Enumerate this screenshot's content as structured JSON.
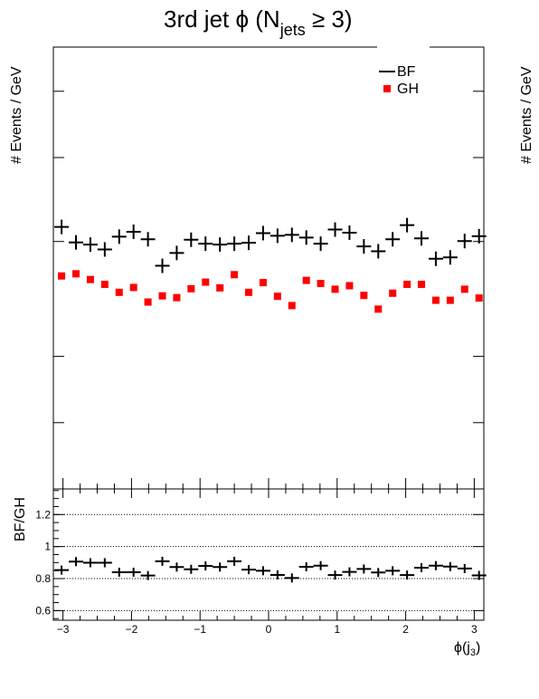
{
  "chart_data": [
    {
      "type": "scatter",
      "title": "3rd jet ϕ (N",
      "title_sub": "jets",
      "title_end": " ≥ 3)",
      "ylabel": "# Events / GeV",
      "ylabel_right": "# Events / GeV",
      "y_tick_labels": [],
      "legend": {
        "placement": "top-right",
        "entries": [
          "BF",
          "GH"
        ]
      },
      "x": [
        -3.02,
        -2.81,
        -2.6,
        -2.39,
        -2.18,
        -1.97,
        -1.76,
        -1.55,
        -1.34,
        -1.13,
        -0.92,
        -0.71,
        -0.5,
        -0.29,
        -0.08,
        0.13,
        0.34,
        0.55,
        0.76,
        0.97,
        1.18,
        1.39,
        1.6,
        1.81,
        2.02,
        2.23,
        2.44,
        2.65,
        2.86,
        3.07
      ],
      "series": [
        {
          "name": "BF",
          "color": "#000000",
          "marker": "cross",
          "values": [
            0.593,
            0.558,
            0.553,
            0.542,
            0.571,
            0.582,
            0.565,
            0.505,
            0.534,
            0.564,
            0.555,
            0.553,
            0.555,
            0.557,
            0.579,
            0.573,
            0.575,
            0.569,
            0.555,
            0.587,
            0.58,
            0.549,
            0.538,
            0.565,
            0.597,
            0.567,
            0.521,
            0.524,
            0.561,
            0.572
          ]
        },
        {
          "name": "GH",
          "color": "#ff0000",
          "marker": "square",
          "values": [
            0.482,
            0.487,
            0.474,
            0.463,
            0.445,
            0.456,
            0.423,
            0.437,
            0.433,
            0.453,
            0.468,
            0.455,
            0.485,
            0.445,
            0.467,
            0.436,
            0.415,
            0.472,
            0.465,
            0.452,
            0.46,
            0.438,
            0.407,
            0.443,
            0.463,
            0.463,
            0.427,
            0.427,
            0.452,
            0.432
          ]
        }
      ],
      "grid": false
    },
    {
      "type": "scatter",
      "ylabel": "BF/GH",
      "xlabel": "ϕ(j",
      "xlabel_sub": "3",
      "xlabel_end": ")",
      "xlim": [
        -3.14,
        3.14
      ],
      "ylim": [
        0.54,
        1.36
      ],
      "x_ticks": [
        -3,
        -2,
        -1,
        0,
        1,
        2,
        3
      ],
      "x_tick_labels": [
        "−3",
        "−2",
        "−1",
        "0",
        "1",
        "2",
        "3"
      ],
      "y_ticks": [
        0.6,
        0.8,
        1.0,
        1.2
      ],
      "y_tick_labels": [
        "0.6",
        "0.8",
        "1",
        "1.2"
      ],
      "grid": true,
      "x": [
        -3.02,
        -2.81,
        -2.6,
        -2.39,
        -2.18,
        -1.97,
        -1.76,
        -1.55,
        -1.34,
        -1.13,
        -0.92,
        -0.71,
        -0.5,
        -0.29,
        -0.08,
        0.13,
        0.34,
        0.55,
        0.76,
        0.97,
        1.18,
        1.39,
        1.6,
        1.81,
        2.02,
        2.23,
        2.44,
        2.65,
        2.86,
        3.07
      ],
      "series": [
        {
          "name": "BF/GH",
          "color": "#000000",
          "marker": "cross",
          "values": [
            0.853,
            0.906,
            0.899,
            0.899,
            0.84,
            0.84,
            0.819,
            0.908,
            0.872,
            0.858,
            0.879,
            0.872,
            0.908,
            0.856,
            0.849,
            0.823,
            0.804,
            0.874,
            0.881,
            0.822,
            0.842,
            0.86,
            0.838,
            0.849,
            0.822,
            0.868,
            0.881,
            0.875,
            0.863,
            0.82
          ]
        }
      ]
    }
  ]
}
